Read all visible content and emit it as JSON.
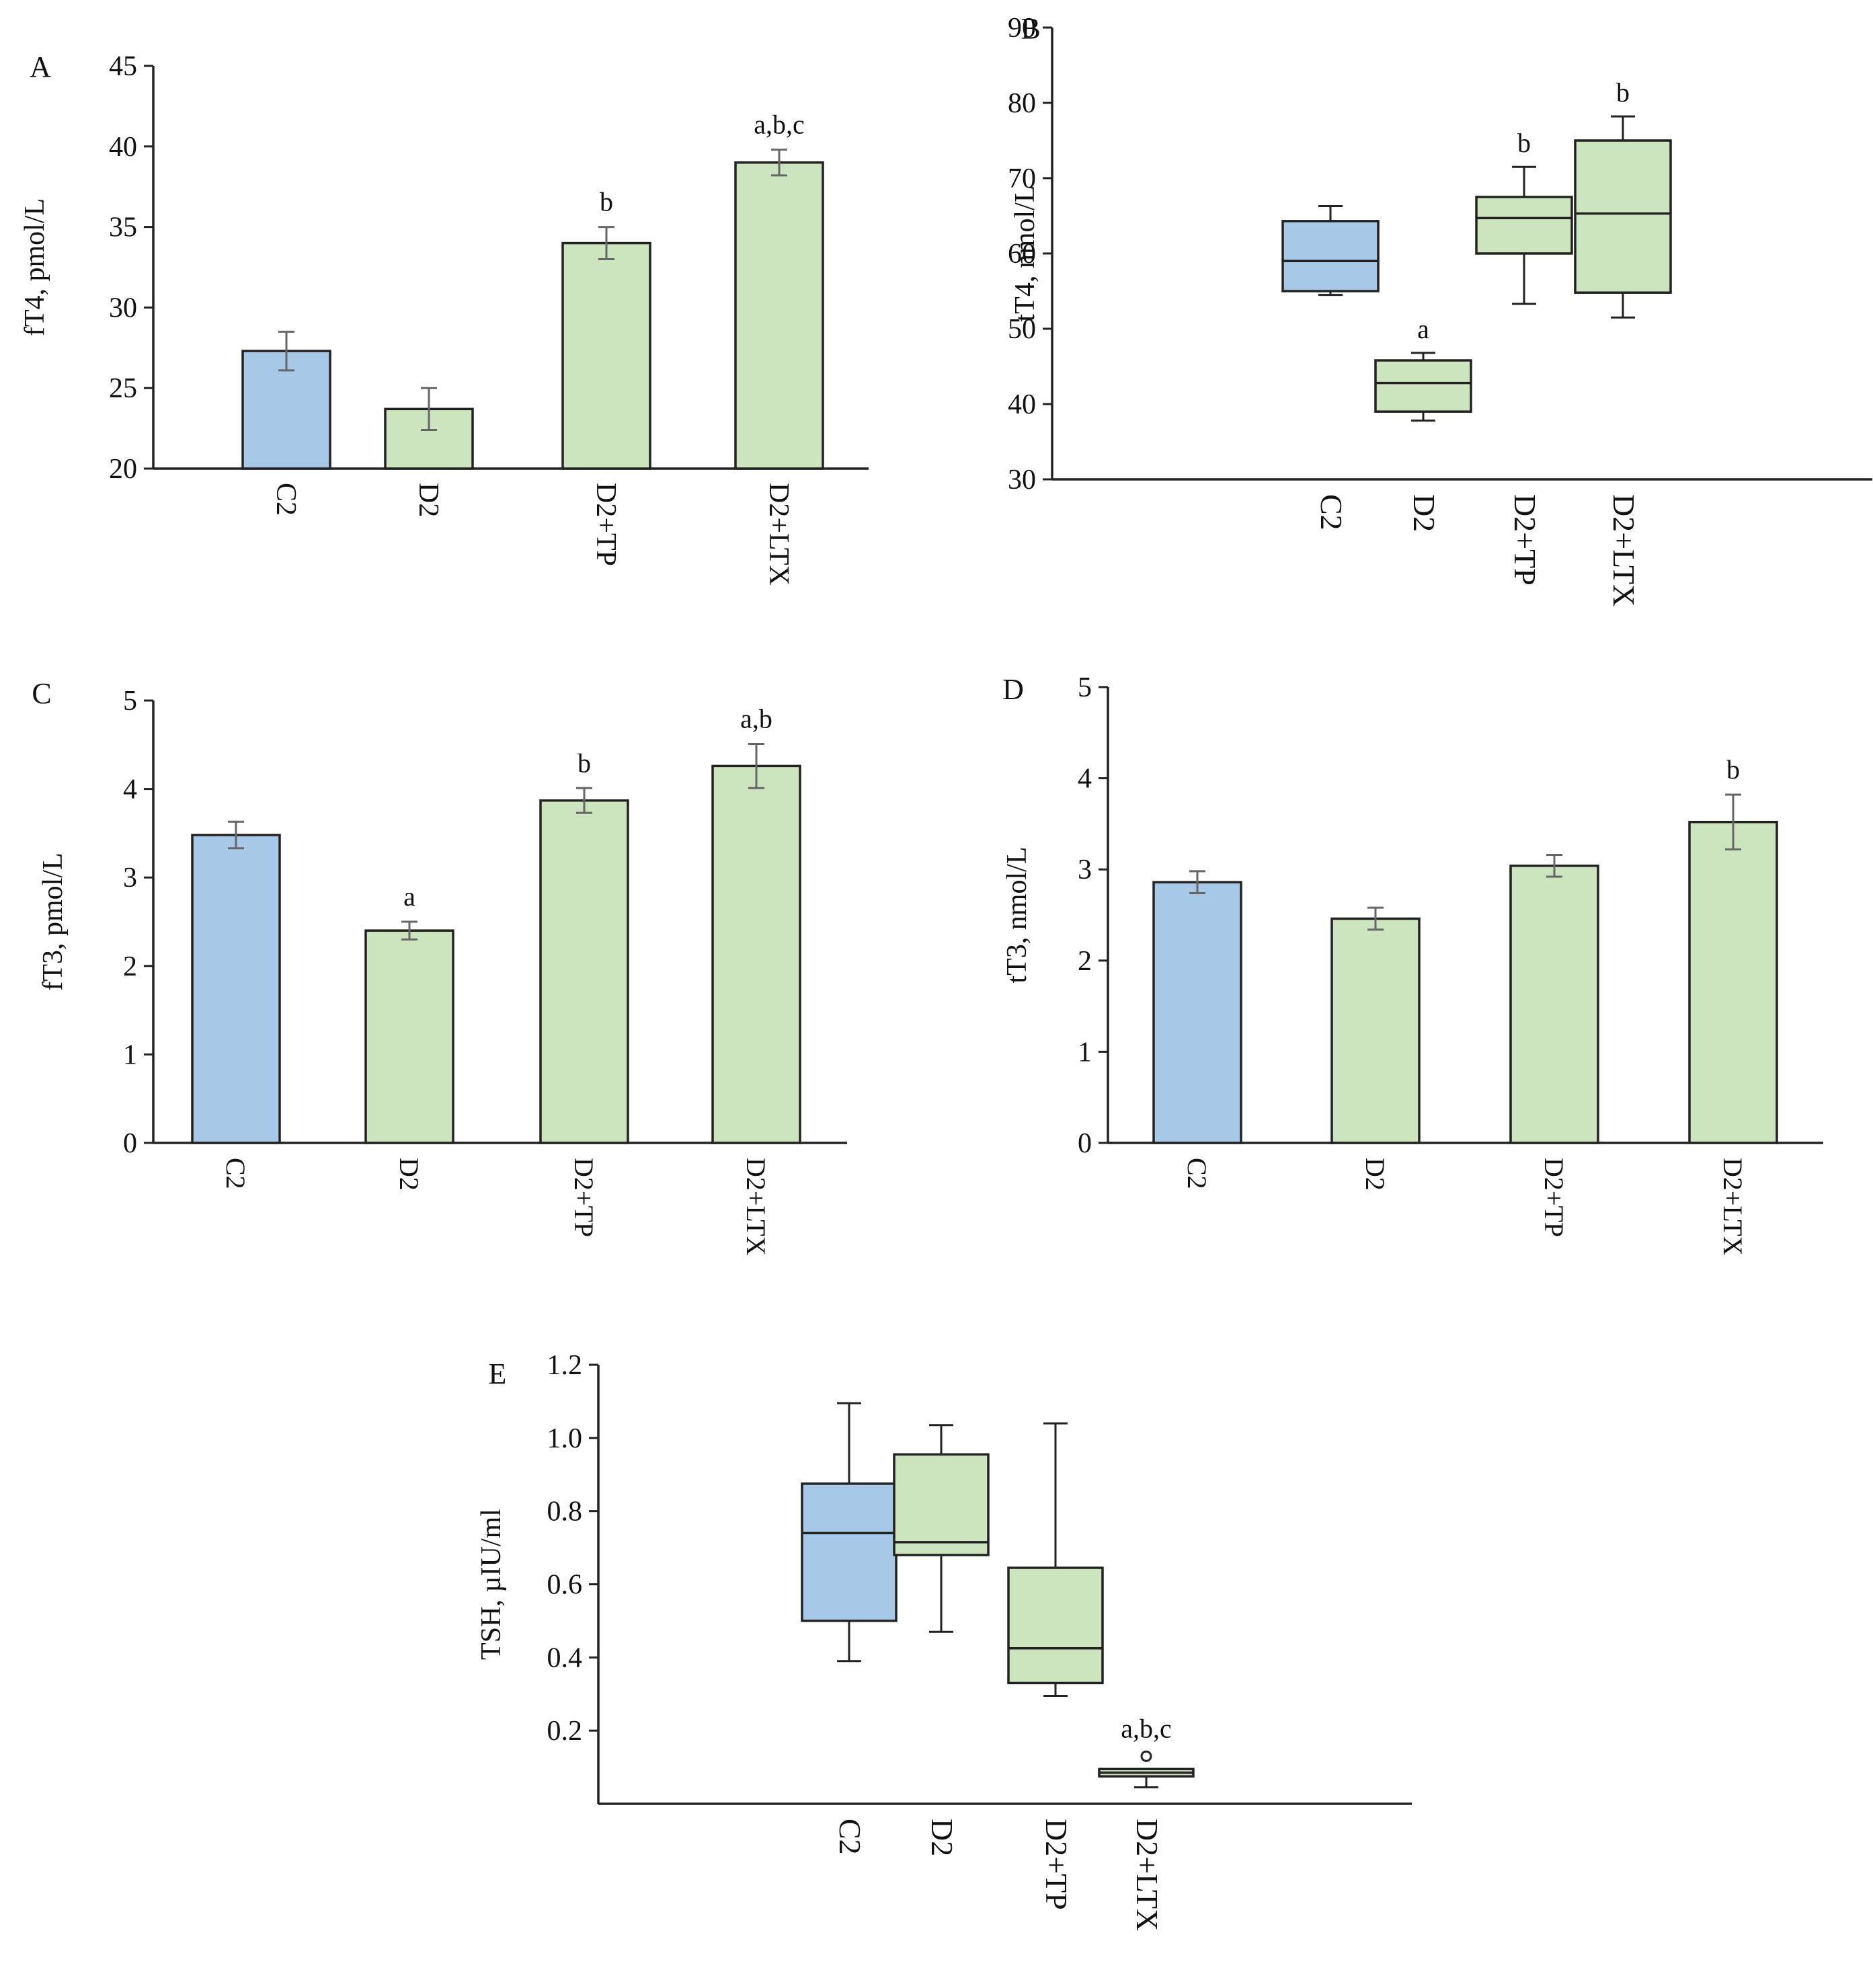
{
  "colors": {
    "control": "#a8c8e8",
    "treated": "#cde5bf",
    "outline": "#222222",
    "error_bar": "#666666"
  },
  "chart_data": [
    {
      "id": "A",
      "panel_label": "A",
      "type": "bar",
      "ylabel": "fT4, pmol/L",
      "ylim": [
        20,
        45
      ],
      "yticks": [
        20,
        25,
        30,
        35,
        40,
        45
      ],
      "categories": [
        "C2",
        "D2",
        "D2+TP",
        "D2+LTX"
      ],
      "values": [
        27.3,
        23.7,
        34.0,
        39.0
      ],
      "errors": [
        1.2,
        1.3,
        1.0,
        0.8
      ],
      "annotations": [
        "",
        "",
        "b",
        "a,b,c"
      ]
    },
    {
      "id": "B",
      "panel_label": "B",
      "type": "box",
      "ylabel": "tT4, nmol/L",
      "ylim": [
        30,
        90
      ],
      "yticks": [
        30,
        40,
        50,
        60,
        70,
        80,
        90
      ],
      "categories": [
        "C2",
        "D2",
        "D2+TP",
        "D2+LTX"
      ],
      "boxes": [
        {
          "min": 54.5,
          "q1": 55,
          "median": 59,
          "q3": 64.3,
          "max": 66.3
        },
        {
          "min": 37.8,
          "q1": 39,
          "median": 42.8,
          "q3": 45.8,
          "max": 46.8
        },
        {
          "min": 53.3,
          "q1": 60,
          "median": 64.7,
          "q3": 67.5,
          "max": 71.5
        },
        {
          "min": 51.5,
          "q1": 54.8,
          "median": 65.3,
          "q3": 75,
          "max": 78.2
        }
      ],
      "annotations": [
        "",
        "a",
        "b",
        "b"
      ]
    },
    {
      "id": "C",
      "panel_label": "C",
      "type": "bar",
      "ylabel": "fT3, pmol/L",
      "ylim": [
        0,
        5
      ],
      "yticks": [
        0,
        1,
        2,
        3,
        4,
        5
      ],
      "categories": [
        "C2",
        "D2",
        "D2+TP",
        "D2+LTX"
      ],
      "values": [
        3.48,
        2.4,
        3.87,
        4.26
      ],
      "errors": [
        0.15,
        0.1,
        0.14,
        0.25
      ],
      "annotations": [
        "",
        "a",
        "b",
        "a,b"
      ]
    },
    {
      "id": "D",
      "panel_label": "D",
      "type": "bar",
      "ylabel": "tT3, nmol/L",
      "ylim": [
        0,
        5
      ],
      "yticks": [
        0,
        1,
        2,
        3,
        4,
        5
      ],
      "categories": [
        "C2",
        "D2",
        "D2+TP",
        "D2+LTX"
      ],
      "values": [
        2.86,
        2.46,
        3.04,
        3.52
      ],
      "errors": [
        0.12,
        0.12,
        0.12,
        0.3
      ],
      "annotations": [
        "",
        "",
        "",
        "b"
      ]
    },
    {
      "id": "E",
      "panel_label": "E",
      "type": "box",
      "ylabel": "TSH, µIU/ml",
      "ylim": [
        0,
        1.2
      ],
      "yticks": [
        0.2,
        0.4,
        0.6,
        0.8,
        1.0,
        1.2
      ],
      "ytick_labels": [
        "0.2",
        "0.4",
        "0.6",
        "0.8",
        "1.0",
        "1.2"
      ],
      "categories": [
        "C2",
        "D2",
        "D2+TP",
        "D2+LTX"
      ],
      "boxes": [
        {
          "min": 0.39,
          "q1": 0.5,
          "median": 0.74,
          "q3": 0.875,
          "max": 1.095
        },
        {
          "min": 0.47,
          "q1": 0.68,
          "median": 0.715,
          "q3": 0.955,
          "max": 1.035
        },
        {
          "min": 0.295,
          "q1": 0.33,
          "median": 0.425,
          "q3": 0.645,
          "max": 1.04
        },
        {
          "min": 0.045,
          "q1": 0.075,
          "median": 0.085,
          "q3": 0.095,
          "max": 0.095,
          "outlier": 0.13
        }
      ],
      "annotations": [
        "",
        "",
        "",
        "a,b,c"
      ]
    }
  ]
}
